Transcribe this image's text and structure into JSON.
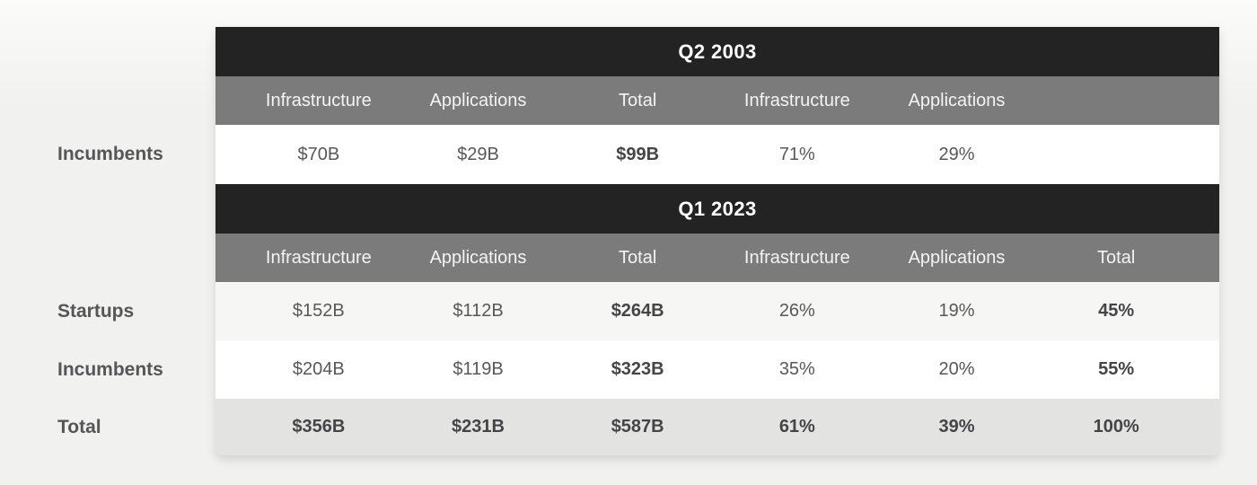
{
  "colors": {
    "banner_bg": "#232323",
    "banner_text": "#ffffff",
    "column_header_bg": "#7b7b7b",
    "row_white": "#ffffff",
    "row_faint": "#f6f6f5",
    "row_total_bg": "#e3e3e2",
    "body_text": "#58585a",
    "bold_text": "#454548",
    "page_bg": "#f1f1ef"
  },
  "sections": [
    {
      "banner": "Q2 2003",
      "columns": [
        "Infrastructure",
        "Applications",
        "Total",
        "Infrastructure",
        "Applications",
        ""
      ],
      "rows": [
        {
          "label": "Incumbents",
          "values": [
            "$70B",
            "$29B",
            "$99B",
            "71%",
            "29%",
            ""
          ]
        }
      ]
    },
    {
      "banner": "Q1 2023",
      "columns": [
        "Infrastructure",
        "Applications",
        "Total",
        "Infrastructure",
        "Applications",
        "Total"
      ],
      "rows": [
        {
          "label": "Startups",
          "values": [
            "$152B",
            "$112B",
            "$264B",
            "26%",
            "19%",
            "45%"
          ]
        },
        {
          "label": "Incumbents",
          "values": [
            "$204B",
            "$119B",
            "$323B",
            "35%",
            "20%",
            "55%"
          ]
        },
        {
          "label": "Total",
          "values": [
            "$356B",
            "$231B",
            "$587B",
            "61%",
            "39%",
            "100%"
          ]
        }
      ]
    }
  ],
  "chart_data": {
    "type": "table",
    "layout": "two stacked period sections sharing six columns: dollar values ($B) for Infrastructure / Applications / Total, then percentage shares for Infrastructure / Applications / Total",
    "sections": [
      {
        "period": "Q2 2003",
        "rows": [
          {
            "label": "Incumbents",
            "infrastructure_b": 70,
            "applications_b": 29,
            "total_b": 99,
            "infrastructure_pct": 71,
            "applications_pct": 29,
            "total_pct": null
          }
        ]
      },
      {
        "period": "Q1 2023",
        "rows": [
          {
            "label": "Startups",
            "infrastructure_b": 152,
            "applications_b": 112,
            "total_b": 264,
            "infrastructure_pct": 26,
            "applications_pct": 19,
            "total_pct": 45
          },
          {
            "label": "Incumbents",
            "infrastructure_b": 204,
            "applications_b": 119,
            "total_b": 323,
            "infrastructure_pct": 35,
            "applications_pct": 20,
            "total_pct": 55
          },
          {
            "label": "Total",
            "infrastructure_b": 356,
            "applications_b": 231,
            "total_b": 587,
            "infrastructure_pct": 61,
            "applications_pct": 39,
            "total_pct": 100
          }
        ]
      }
    ]
  }
}
